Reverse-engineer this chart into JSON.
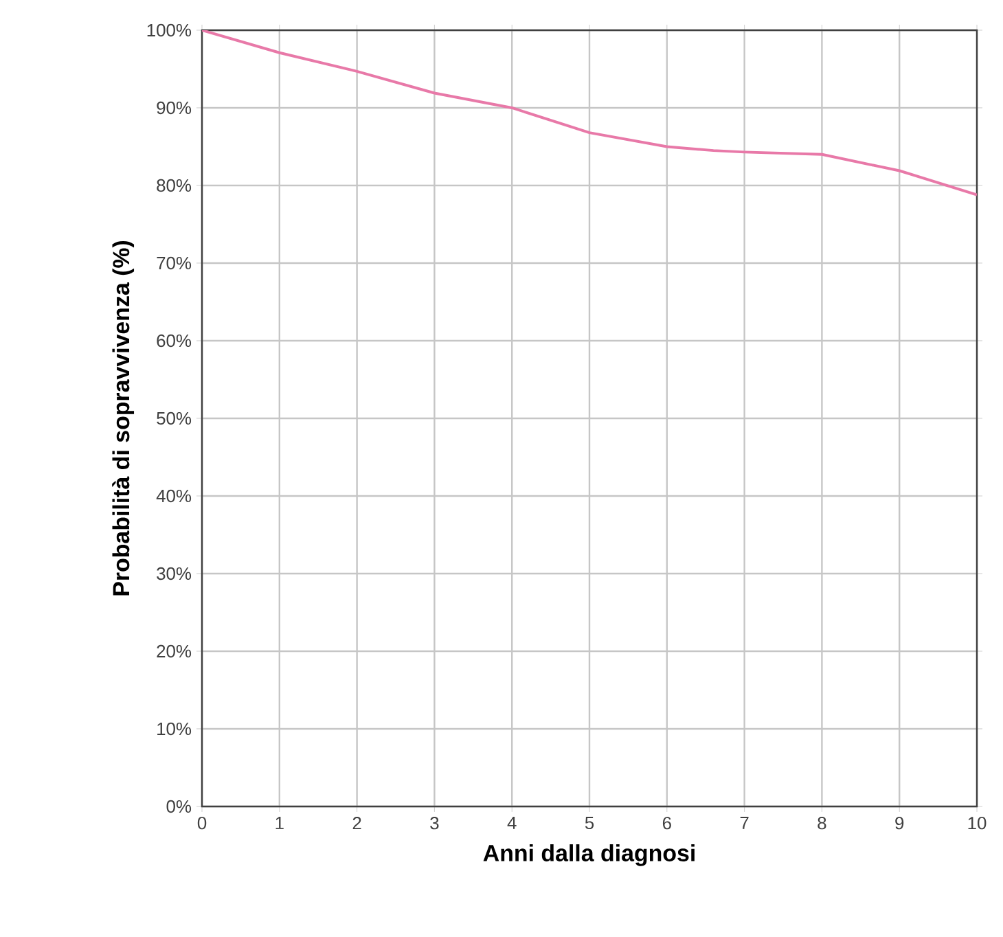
{
  "chart_data": {
    "type": "line",
    "xlabel": "Anni dalla diagnosi",
    "ylabel": "Probabilità di sopravvivenza (%)",
    "x": [
      0,
      1,
      2,
      3,
      4,
      5,
      6,
      6.6,
      7,
      8,
      9,
      10
    ],
    "series": [
      {
        "color": "#e879a8",
        "values": [
          100,
          97.1,
          94.7,
          91.9,
          90,
          86.8,
          85,
          84.5,
          84.3,
          84,
          81.9,
          78.8
        ]
      }
    ],
    "xlim": [
      0,
      10
    ],
    "xticks": [
      0,
      1,
      2,
      3,
      4,
      5,
      6,
      7,
      8,
      9,
      10
    ],
    "ylim": [
      0,
      100
    ],
    "yticks": [
      {
        "value": 0,
        "label": "0%"
      },
      {
        "value": 10,
        "label": "10%"
      },
      {
        "value": 20,
        "label": "20%"
      },
      {
        "value": 30,
        "label": "30%"
      },
      {
        "value": 40,
        "label": "40%"
      },
      {
        "value": 50,
        "label": "50%"
      },
      {
        "value": 60,
        "label": "60%"
      },
      {
        "value": 70,
        "label": "70%"
      },
      {
        "value": 80,
        "label": "80%"
      },
      {
        "value": 90,
        "label": "90%"
      },
      {
        "value": 100,
        "label": "100%"
      }
    ],
    "grid": true,
    "marker": "none",
    "line_style": "solid"
  }
}
